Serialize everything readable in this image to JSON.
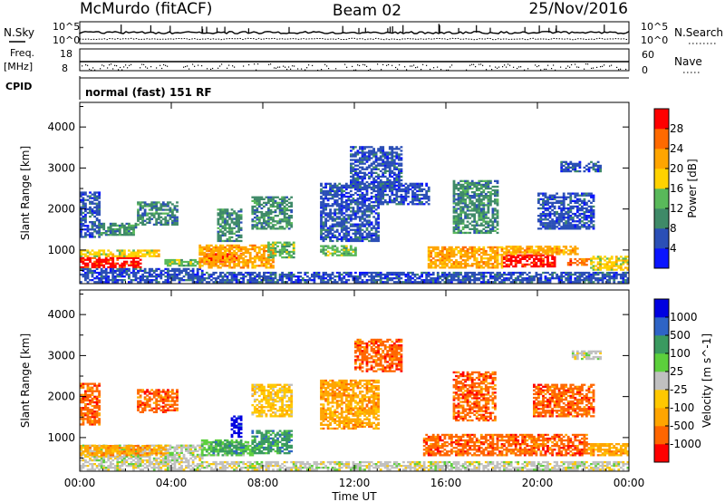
{
  "header": {
    "station": "McMurdo (fitACF)",
    "beam": "Beam 02",
    "date": "25/Nov/2016"
  },
  "top_panels": {
    "nsky_label": "N.Sky",
    "nsearch_label": "N.Search",
    "noise_tick_high": "10^5",
    "noise_tick_low": "10^0",
    "freq_label_line1": "Freq.",
    "freq_label_line2": "[MHz]",
    "freq_tick_high": "18",
    "freq_tick_low": "8",
    "nave_label": "Nave",
    "nave_tick_high": "60",
    "nave_tick_low": "0",
    "cpid_label": "CPID",
    "cpid_text": "normal (fast) 151 RF"
  },
  "colors": {
    "power": [
      "#0a14ff",
      "#2b4fb6",
      "#3f8a68",
      "#59b95a",
      "#ffd200",
      "#ffa500",
      "#ff6a00",
      "#ff0000"
    ],
    "velocity": [
      "#ff0000",
      "#ff6600",
      "#ffa500",
      "#ffc800",
      "#c0c0c0",
      "#5cd03c",
      "#3a9a60",
      "#2e64c6",
      "#0000e0"
    ]
  },
  "chart_data": [
    {
      "type": "heatmap",
      "name": "Power",
      "ylabel": "Slant Range [km]",
      "xlabel": "",
      "x_ticks": [
        "00:00",
        "04:00",
        "08:00",
        "12:00",
        "16:00",
        "20:00",
        "00:00"
      ],
      "x_range_hours": [
        0,
        24
      ],
      "y_ticks": [
        "1000",
        "2000",
        "3000",
        "4000"
      ],
      "ylim_km": [
        180,
        4600
      ],
      "colorbar": {
        "label": "Power [dB]",
        "ticks": [
          "4",
          "8",
          "12",
          "16",
          "20",
          "24",
          "28"
        ],
        "range": [
          0,
          32
        ]
      },
      "regions": [
        {
          "t0": 0.0,
          "t1": 2.7,
          "r0": 560,
          "r1": 800,
          "level": 7
        },
        {
          "t0": 0.0,
          "t1": 3.5,
          "r0": 830,
          "r1": 980,
          "level": 4
        },
        {
          "t0": 0.0,
          "t1": 5.3,
          "r0": 200,
          "r1": 540,
          "level": 1
        },
        {
          "t0": 0.0,
          "t1": 0.8,
          "r0": 1300,
          "r1": 2400,
          "level": 1
        },
        {
          "t0": 0.8,
          "t1": 2.5,
          "r0": 1350,
          "r1": 1650,
          "level": 2
        },
        {
          "t0": 2.5,
          "t1": 4.3,
          "r0": 1600,
          "r1": 2150,
          "level": 2
        },
        {
          "t0": 3.7,
          "t1": 5.3,
          "r0": 600,
          "r1": 780,
          "level": 3
        },
        {
          "t0": 5.5,
          "t1": 7.0,
          "r0": 700,
          "r1": 900,
          "level": 7
        },
        {
          "t0": 5.2,
          "t1": 8.4,
          "r0": 550,
          "r1": 1100,
          "level": 5
        },
        {
          "t0": 6.0,
          "t1": 7.0,
          "r0": 1200,
          "r1": 2000,
          "level": 2
        },
        {
          "t0": 7.5,
          "t1": 9.2,
          "r0": 1500,
          "r1": 2300,
          "level": 2
        },
        {
          "t0": 8.2,
          "t1": 9.3,
          "r0": 800,
          "r1": 1200,
          "level": 3
        },
        {
          "t0": 10.5,
          "t1": 13.0,
          "r0": 1200,
          "r1": 2600,
          "level": 1
        },
        {
          "t0": 10.5,
          "t1": 12.0,
          "r0": 850,
          "r1": 1100,
          "level": 3
        },
        {
          "t0": 11.8,
          "t1": 14.0,
          "r0": 2500,
          "r1": 3500,
          "level": 1
        },
        {
          "t0": 13.0,
          "t1": 15.2,
          "r0": 2100,
          "r1": 2600,
          "level": 1
        },
        {
          "t0": 15.2,
          "t1": 18.5,
          "r0": 550,
          "r1": 1080,
          "level": 5
        },
        {
          "t0": 16.3,
          "t1": 18.3,
          "r0": 1400,
          "r1": 2700,
          "level": 2
        },
        {
          "t0": 18.5,
          "t1": 20.8,
          "r0": 580,
          "r1": 880,
          "level": 7
        },
        {
          "t0": 18.5,
          "t1": 21.8,
          "r0": 880,
          "r1": 1080,
          "level": 5
        },
        {
          "t0": 20.0,
          "t1": 22.5,
          "r0": 1500,
          "r1": 2400,
          "level": 1
        },
        {
          "t0": 21.3,
          "t1": 22.3,
          "r0": 620,
          "r1": 800,
          "level": 6
        },
        {
          "t0": 22.3,
          "t1": 24.0,
          "r0": 500,
          "r1": 850,
          "level": 4
        },
        {
          "t0": 21.0,
          "t1": 22.8,
          "r0": 2900,
          "r1": 3150,
          "level": 1
        },
        {
          "t0": 5.3,
          "t1": 24.0,
          "r0": 200,
          "r1": 430,
          "level": 1
        }
      ]
    },
    {
      "type": "heatmap",
      "name": "Velocity",
      "ylabel": "Slant Range [km]",
      "xlabel": "Time UT",
      "x_ticks": [
        "00:00",
        "04:00",
        "08:00",
        "12:00",
        "16:00",
        "20:00",
        "00:00"
      ],
      "x_range_hours": [
        0,
        24
      ],
      "y_ticks": [
        "1000",
        "2000",
        "3000",
        "4000"
      ],
      "ylim_km": [
        180,
        4600
      ],
      "colorbar": {
        "label": "Velocity [m s^-1]",
        "ticks": [
          "-1000",
          "-500",
          "-100",
          "-25",
          "25",
          "100",
          "500",
          "1000"
        ]
      },
      "regions": [
        {
          "t0": 0.0,
          "t1": 5.3,
          "r0": 200,
          "r1": 800,
          "level": 4
        },
        {
          "t0": 0.0,
          "t1": 3.8,
          "r0": 550,
          "r1": 800,
          "level": 2
        },
        {
          "t0": 0.0,
          "t1": 0.8,
          "r0": 1300,
          "r1": 2300,
          "level": 1
        },
        {
          "t0": 2.5,
          "t1": 4.3,
          "r0": 1600,
          "r1": 2150,
          "level": 1
        },
        {
          "t0": 5.3,
          "t1": 7.5,
          "r0": 550,
          "r1": 950,
          "level": 5
        },
        {
          "t0": 5.8,
          "t1": 7.2,
          "r0": 600,
          "r1": 900,
          "level": 6
        },
        {
          "t0": 6.6,
          "t1": 7.0,
          "r0": 1000,
          "r1": 1500,
          "level": 8
        },
        {
          "t0": 7.5,
          "t1": 9.2,
          "r0": 600,
          "r1": 1150,
          "level": 6
        },
        {
          "t0": 7.5,
          "t1": 9.2,
          "r0": 1500,
          "r1": 2300,
          "level": 3
        },
        {
          "t0": 10.5,
          "t1": 13.0,
          "r0": 1200,
          "r1": 2400,
          "level": 2
        },
        {
          "t0": 12.0,
          "t1": 14.0,
          "r0": 2600,
          "r1": 3400,
          "level": 1
        },
        {
          "t0": 15.0,
          "t1": 18.5,
          "r0": 550,
          "r1": 1080,
          "level": 1
        },
        {
          "t0": 16.3,
          "t1": 18.2,
          "r0": 1400,
          "r1": 2600,
          "level": 1
        },
        {
          "t0": 18.5,
          "t1": 22.2,
          "r0": 550,
          "r1": 1080,
          "level": 1
        },
        {
          "t0": 19.8,
          "t1": 22.5,
          "r0": 1500,
          "r1": 2300,
          "level": 1
        },
        {
          "t0": 22.2,
          "t1": 24.0,
          "r0": 550,
          "r1": 850,
          "level": 2
        },
        {
          "t0": 21.5,
          "t1": 22.8,
          "r0": 2900,
          "r1": 3100,
          "level": 4
        },
        {
          "t0": 5.3,
          "t1": 24.0,
          "r0": 200,
          "r1": 400,
          "level": 4
        }
      ]
    }
  ]
}
